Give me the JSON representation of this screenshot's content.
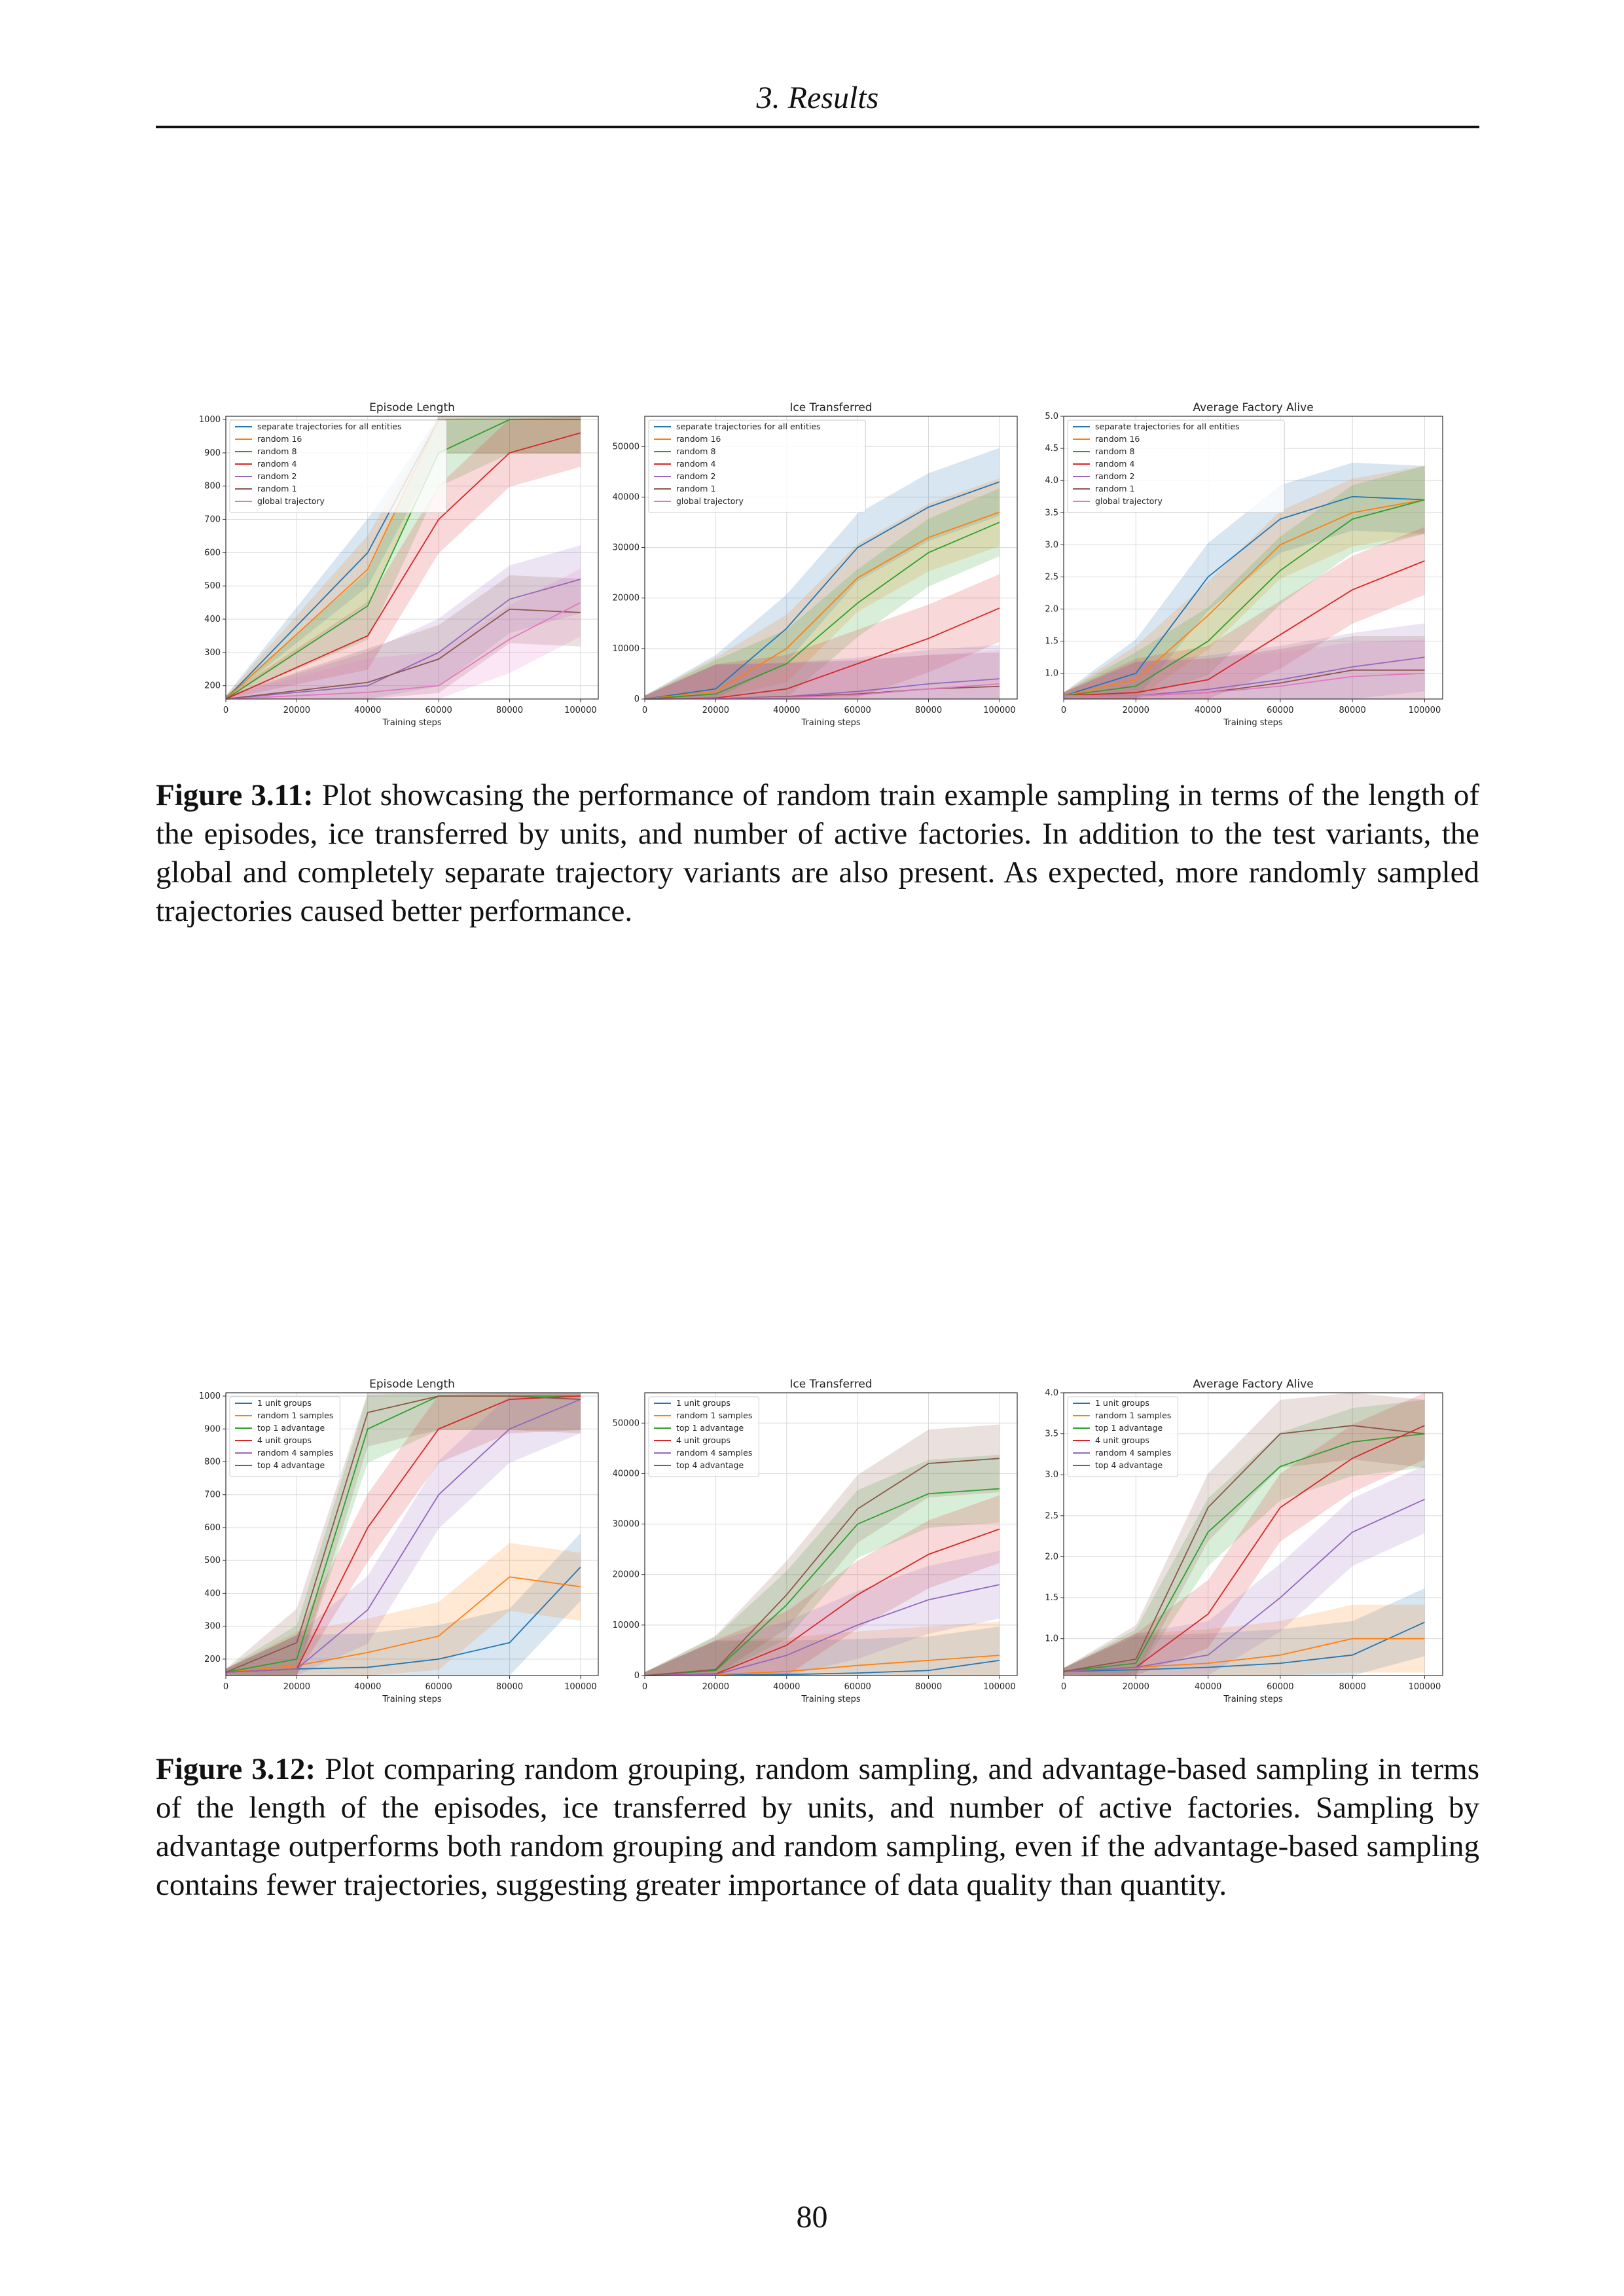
{
  "running_head": "3. Results",
  "page_number": "80",
  "figures": [
    {
      "caption_label": "Figure 3.11:",
      "caption_text": " Plot showcasing the performance of random train example sampling in terms of the length of the episodes, ice transferred by units, and number of active factories. In addition to the test variants, the global and completely separate trajectory variants are also present. As expected, more randomly sampled trajectories caused better performance."
    },
    {
      "caption_label": "Figure 3.12:",
      "caption_text": " Plot comparing random grouping, random sampling, and advantage-based sampling in terms of the length of the episodes, ice transferred by units, and number of active factories. Sampling by advantage outperforms both random grouping and random sampling, even if the advantage-based sampling contains fewer trajectories, suggesting greater importance of data quality than quantity."
    }
  ],
  "chart_data": [
    {
      "type": "line",
      "title": "Episode Length",
      "xlabel": "Training steps",
      "ylabel": "",
      "xlim": [
        0,
        105000
      ],
      "ylim": [
        160,
        1010
      ],
      "xticks": [
        "0",
        "20000",
        "40000",
        "60000",
        "80000",
        "100000"
      ],
      "yticks": [
        "200",
        "300",
        "400",
        "500",
        "600",
        "700",
        "800",
        "900",
        "1000"
      ],
      "grid": true,
      "legend_position": "upper-left",
      "x": [
        0,
        40000,
        60000,
        80000,
        100000
      ],
      "series": [
        {
          "name": "separate trajectories for all entities",
          "color": "#1f77b4",
          "values": [
            160,
            600,
            1000,
            1000,
            1000
          ]
        },
        {
          "name": "random 16",
          "color": "#ff7f0e",
          "values": [
            160,
            550,
            1000,
            1000,
            1000
          ]
        },
        {
          "name": "random 8",
          "color": "#2ca02c",
          "values": [
            160,
            440,
            900,
            1000,
            1000
          ]
        },
        {
          "name": "random 4",
          "color": "#d62728",
          "values": [
            160,
            350,
            700,
            900,
            960
          ]
        },
        {
          "name": "random 2",
          "color": "#9467bd",
          "values": [
            160,
            200,
            300,
            460,
            520
          ]
        },
        {
          "name": "random 1",
          "color": "#8c564b",
          "values": [
            160,
            210,
            280,
            430,
            420
          ]
        },
        {
          "name": "global trajectory",
          "color": "#e377c2",
          "values": [
            160,
            180,
            200,
            340,
            450
          ]
        }
      ]
    },
    {
      "type": "line",
      "title": "Ice Transferred",
      "xlabel": "Training steps",
      "ylabel": "",
      "xlim": [
        0,
        105000
      ],
      "ylim": [
        0,
        56000
      ],
      "xticks": [
        "0",
        "20000",
        "40000",
        "60000",
        "80000",
        "100000"
      ],
      "yticks": [
        "0",
        "10000",
        "20000",
        "30000",
        "40000",
        "50000"
      ],
      "grid": true,
      "legend_position": "upper-left",
      "x": [
        0,
        20000,
        40000,
        60000,
        80000,
        100000
      ],
      "series": [
        {
          "name": "separate trajectories for all entities",
          "color": "#1f77b4",
          "values": [
            0,
            2000,
            14000,
            30000,
            38000,
            43000
          ]
        },
        {
          "name": "random 16",
          "color": "#ff7f0e",
          "values": [
            0,
            1500,
            10000,
            24000,
            32000,
            37000
          ]
        },
        {
          "name": "random 8",
          "color": "#2ca02c",
          "values": [
            0,
            1000,
            7000,
            19000,
            29000,
            35000
          ]
        },
        {
          "name": "random 4",
          "color": "#d62728",
          "values": [
            0,
            200,
            2000,
            7000,
            12000,
            18000
          ]
        },
        {
          "name": "random 2",
          "color": "#9467bd",
          "values": [
            0,
            100,
            500,
            1500,
            3000,
            4000
          ]
        },
        {
          "name": "random 1",
          "color": "#8c564b",
          "values": [
            0,
            100,
            400,
            1000,
            2000,
            2500
          ]
        },
        {
          "name": "global trajectory",
          "color": "#e377c2",
          "values": [
            0,
            100,
            300,
            800,
            2000,
            3000
          ]
        }
      ]
    },
    {
      "type": "line",
      "title": "Average Factory Alive",
      "xlabel": "Training steps",
      "ylabel": "",
      "xlim": [
        0,
        105000
      ],
      "ylim": [
        0.6,
        5.0
      ],
      "xticks": [
        "0",
        "20000",
        "40000",
        "60000",
        "80000",
        "100000"
      ],
      "yticks": [
        "1.0",
        "1.5",
        "2.0",
        "2.5",
        "3.0",
        "3.5",
        "4.0",
        "4.5",
        "5.0"
      ],
      "grid": true,
      "legend_position": "upper-left",
      "x": [
        0,
        20000,
        40000,
        60000,
        80000,
        100000
      ],
      "series": [
        {
          "name": "separate trajectories for all entities",
          "color": "#1f77b4",
          "values": [
            0.65,
            1.0,
            2.5,
            3.4,
            3.75,
            3.7
          ]
        },
        {
          "name": "random 16",
          "color": "#ff7f0e",
          "values": [
            0.65,
            0.9,
            1.9,
            3.0,
            3.5,
            3.7
          ]
        },
        {
          "name": "random 8",
          "color": "#2ca02c",
          "values": [
            0.65,
            0.8,
            1.5,
            2.6,
            3.4,
            3.7
          ]
        },
        {
          "name": "random 4",
          "color": "#d62728",
          "values": [
            0.65,
            0.7,
            0.9,
            1.6,
            2.3,
            2.75
          ]
        },
        {
          "name": "random 2",
          "color": "#9467bd",
          "values": [
            0.65,
            0.65,
            0.75,
            0.9,
            1.1,
            1.25
          ]
        },
        {
          "name": "random 1",
          "color": "#8c564b",
          "values": [
            0.65,
            0.65,
            0.7,
            0.85,
            1.05,
            1.05
          ]
        },
        {
          "name": "global trajectory",
          "color": "#e377c2",
          "values": [
            0.65,
            0.65,
            0.7,
            0.8,
            0.95,
            1.0
          ]
        }
      ]
    },
    {
      "type": "line",
      "title": "Episode Length",
      "xlabel": "Training steps",
      "ylabel": "",
      "xlim": [
        0,
        105000
      ],
      "ylim": [
        150,
        1010
      ],
      "xticks": [
        "0",
        "20000",
        "40000",
        "60000",
        "80000",
        "100000"
      ],
      "yticks": [
        "200",
        "300",
        "400",
        "500",
        "600",
        "700",
        "800",
        "900",
        "1000"
      ],
      "grid": true,
      "legend_position": "upper-left",
      "x": [
        0,
        20000,
        40000,
        60000,
        80000,
        100000
      ],
      "series": [
        {
          "name": "1 unit groups",
          "color": "#1f77b4",
          "values": [
            160,
            170,
            175,
            200,
            250,
            480
          ]
        },
        {
          "name": "random 1 samples",
          "color": "#ff7f0e",
          "values": [
            160,
            180,
            220,
            270,
            450,
            420
          ]
        },
        {
          "name": "top 1 advantage",
          "color": "#2ca02c",
          "values": [
            160,
            200,
            900,
            1000,
            1000,
            1000
          ]
        },
        {
          "name": "4 unit groups",
          "color": "#d62728",
          "values": [
            160,
            170,
            600,
            900,
            990,
            1000
          ]
        },
        {
          "name": "random 4 samples",
          "color": "#9467bd",
          "values": [
            160,
            170,
            350,
            700,
            900,
            990
          ]
        },
        {
          "name": "top 4 advantage",
          "color": "#8c564b",
          "values": [
            160,
            250,
            950,
            1000,
            1000,
            990
          ]
        }
      ]
    },
    {
      "type": "line",
      "title": "Ice Transferred",
      "xlabel": "Training steps",
      "ylabel": "",
      "xlim": [
        0,
        105000
      ],
      "ylim": [
        0,
        56000
      ],
      "xticks": [
        "0",
        "20000",
        "40000",
        "60000",
        "80000",
        "100000"
      ],
      "yticks": [
        "0",
        "10000",
        "20000",
        "30000",
        "40000",
        "50000"
      ],
      "grid": true,
      "legend_position": "upper-left",
      "x": [
        0,
        20000,
        40000,
        60000,
        80000,
        100000
      ],
      "series": [
        {
          "name": "1 unit groups",
          "color": "#1f77b4",
          "values": [
            0,
            100,
            200,
            500,
            1000,
            3000
          ]
        },
        {
          "name": "random 1 samples",
          "color": "#ff7f0e",
          "values": [
            0,
            200,
            800,
            2000,
            3000,
            4000
          ]
        },
        {
          "name": "top 1 advantage",
          "color": "#2ca02c",
          "values": [
            0,
            1000,
            14000,
            30000,
            36000,
            37000
          ]
        },
        {
          "name": "4 unit groups",
          "color": "#d62728",
          "values": [
            0,
            300,
            6000,
            16000,
            24000,
            29000
          ]
        },
        {
          "name": "random 4 samples",
          "color": "#9467bd",
          "values": [
            0,
            200,
            4000,
            10000,
            15000,
            18000
          ]
        },
        {
          "name": "top 4 advantage",
          "color": "#8c564b",
          "values": [
            0,
            1200,
            16000,
            33000,
            42000,
            43000
          ]
        }
      ]
    },
    {
      "type": "line",
      "title": "Average Factory Alive",
      "xlabel": "Training steps",
      "ylabel": "",
      "xlim": [
        0,
        105000
      ],
      "ylim": [
        0.55,
        4.0
      ],
      "xticks": [
        "0",
        "20000",
        "40000",
        "60000",
        "80000",
        "100000"
      ],
      "yticks": [
        "1.0",
        "1.5",
        "2.0",
        "2.5",
        "3.0",
        "3.5",
        "4.0"
      ],
      "grid": true,
      "legend_position": "upper-left",
      "x": [
        0,
        20000,
        40000,
        60000,
        80000,
        100000
      ],
      "series": [
        {
          "name": "1 unit groups",
          "color": "#1f77b4",
          "values": [
            0.6,
            0.62,
            0.65,
            0.7,
            0.8,
            1.2
          ]
        },
        {
          "name": "random 1 samples",
          "color": "#ff7f0e",
          "values": [
            0.6,
            0.65,
            0.7,
            0.8,
            1.0,
            1.0
          ]
        },
        {
          "name": "top 1 advantage",
          "color": "#2ca02c",
          "values": [
            0.6,
            0.7,
            2.3,
            3.1,
            3.4,
            3.5
          ]
        },
        {
          "name": "4 unit groups",
          "color": "#d62728",
          "values": [
            0.6,
            0.65,
            1.3,
            2.6,
            3.2,
            3.6
          ]
        },
        {
          "name": "random 4 samples",
          "color": "#9467bd",
          "values": [
            0.6,
            0.65,
            0.8,
            1.5,
            2.3,
            2.7
          ]
        },
        {
          "name": "top 4 advantage",
          "color": "#8c564b",
          "values": [
            0.6,
            0.75,
            2.6,
            3.5,
            3.6,
            3.5
          ]
        }
      ]
    }
  ]
}
